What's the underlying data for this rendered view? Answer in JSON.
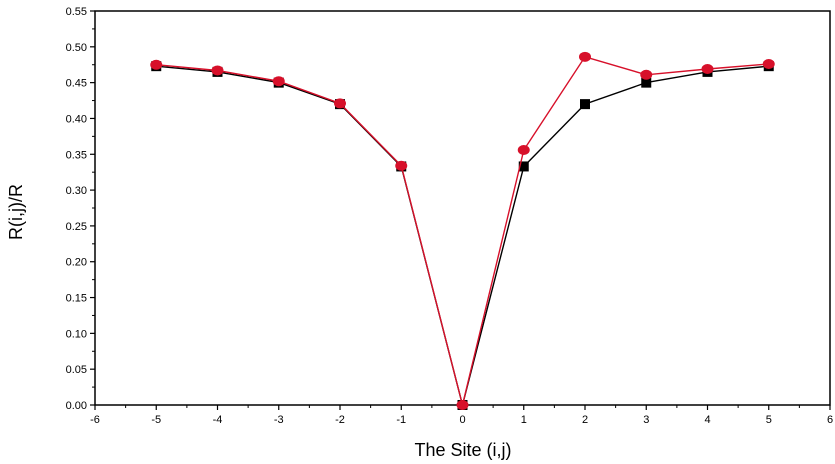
{
  "chart_data": {
    "type": "line",
    "title": "",
    "xlabel": "The Site (i,j)",
    "ylabel": "R(i,j)/R",
    "xlim": [
      -6,
      6
    ],
    "ylim": [
      0,
      0.55
    ],
    "xticks": [
      -6,
      -5,
      -4,
      -3,
      -2,
      -1,
      0,
      1,
      2,
      3,
      4,
      5,
      6
    ],
    "yticks": [
      "0.00",
      "0.05",
      "0.10",
      "0.15",
      "0.20",
      "0.25",
      "0.30",
      "0.35",
      "0.40",
      "0.45",
      "0.50",
      "0.55"
    ],
    "grid": false,
    "legend": "none",
    "series": [
      {
        "marker": "square",
        "color": "#000000",
        "x": [
          -5,
          -4,
          -3,
          -2,
          -1,
          0,
          1,
          2,
          3,
          4,
          5
        ],
        "y": [
          0.473,
          0.465,
          0.45,
          0.42,
          0.333,
          0.0,
          0.333,
          0.42,
          0.45,
          0.465,
          0.473
        ]
      },
      {
        "marker": "circle",
        "color": "#d7102a",
        "x": [
          -5,
          -4,
          -3,
          -2,
          -1,
          0,
          1,
          2,
          3,
          4,
          5
        ],
        "y": [
          0.475,
          0.467,
          0.452,
          0.421,
          0.334,
          0.0,
          0.356,
          0.486,
          0.461,
          0.469,
          0.476
        ]
      }
    ]
  }
}
